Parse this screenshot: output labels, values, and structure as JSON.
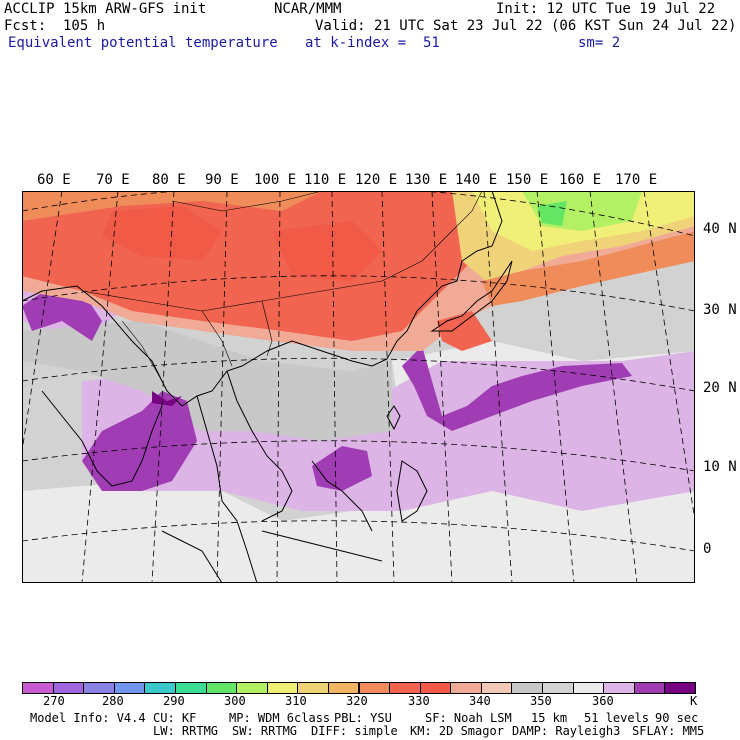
{
  "header": {
    "model": "ACCLIP 15km ARW-GFS init",
    "org": "NCAR/MMM",
    "init": "Init: 12 UTC Tue 19 Jul 22",
    "fcst": "Fcst:  105 h",
    "valid": "Valid: 21 UTC Sat 23 Jul 22 (06 KST Sun 24 Jul 22)",
    "field": "Equivalent potential temperature",
    "level": "at k-index =  51",
    "smooth": "sm= 2"
  },
  "map": {
    "lon_labels": [
      "60 E",
      "70 E",
      "80 E",
      "90 E",
      "100 E",
      "110 E",
      "120 E",
      "130 E",
      "140 E",
      "150 E",
      "160 E",
      "170 E"
    ],
    "lat_labels": [
      "40 N",
      "30 N",
      "20 N",
      "10 N",
      "0"
    ]
  },
  "colorbar": {
    "colors": [
      "#c85ad2",
      "#a064dc",
      "#8c82e6",
      "#6e96f0",
      "#3cc8c8",
      "#3cdc96",
      "#64e664",
      "#b4f064",
      "#f0f078",
      "#f0d278",
      "#f0b464",
      "#f08c5a",
      "#f06450",
      "#f05a46",
      "#f0aa96",
      "#f0c8b4",
      "#c8c8c8",
      "#d2d2d2",
      "#ebebeb",
      "#dcb4e6",
      "#a03cb4",
      "#780082"
    ],
    "labels": [
      "270",
      "280",
      "290",
      "300",
      "310",
      "320",
      "330",
      "340",
      "350",
      "360"
    ],
    "unit": "K"
  },
  "footer": {
    "line1": [
      "Model Info: V4.4",
      "CU: KF",
      "MP: WDM 6class",
      "PBL: YSU",
      "SF: Noah LSM",
      "15 km",
      "51 levels",
      "90 sec"
    ],
    "line2": [
      "LW: RRTMG",
      "SW: RRTMG",
      "DIFF: simple",
      "KM: 2D Smagor",
      "DAMP: Rayleigh3",
      "SFLAY: MM5"
    ]
  }
}
